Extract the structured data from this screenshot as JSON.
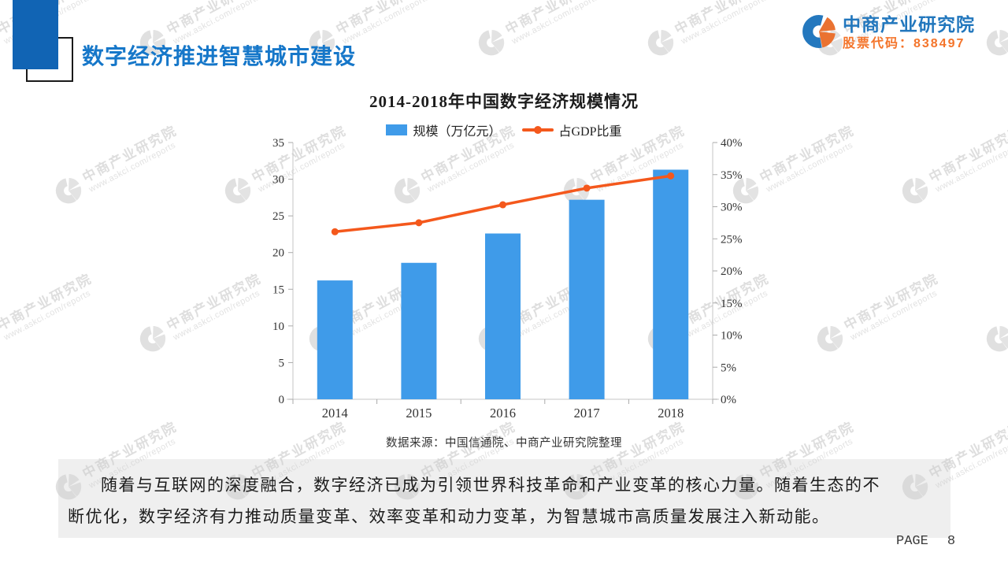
{
  "slide": {
    "title": "数字经济推进智慧城市建设",
    "page_label": "PAGE",
    "page_number": "8"
  },
  "logo": {
    "name": "中商产业研究院",
    "stock": "股票代码：838497",
    "icon": "split-circle-askci-logo"
  },
  "watermark": {
    "line1": "中商产业研究院",
    "line2": "www.askci.com/reports",
    "icon": "split-circle-askci-logo-gray"
  },
  "paragraph": {
    "lines": [
      "随着与互联网的深度融合，数字经济已成为引领世界科技革命和产业变革的核心力量。随着生态的不",
      "断优化，数字经济有力推动质量变革、效率变革和动力变革，为智慧城市高质量发展注入新动能。"
    ]
  },
  "chart_data": {
    "type": "bar+line",
    "title": "2014-2018年中国数字经济规模情况",
    "categories": [
      "2014",
      "2015",
      "2016",
      "2017",
      "2018"
    ],
    "series": [
      {
        "name": "规模（万亿元）",
        "type": "bar",
        "axis": "left",
        "color": "#3f9be9",
        "values": [
          16.2,
          18.6,
          22.6,
          27.2,
          31.3
        ]
      },
      {
        "name": "占GDP比重",
        "type": "line",
        "axis": "right",
        "color": "#f4581c",
        "unit": "%",
        "values": [
          26.1,
          27.5,
          30.3,
          32.9,
          34.8
        ]
      }
    ],
    "left_axis": {
      "min": 0,
      "max": 35,
      "step": 5,
      "ticks": [
        "0",
        "5",
        "10",
        "15",
        "20",
        "25",
        "30",
        "35"
      ]
    },
    "right_axis": {
      "min": 0,
      "max": 40,
      "step": 5,
      "ticks": [
        "0%",
        "5%",
        "10%",
        "15%",
        "20%",
        "25%",
        "30%",
        "35%",
        "40%"
      ]
    },
    "grid": false,
    "legend_position": "top",
    "source": "数据来源：中国信通院、中商产业研究院整理"
  }
}
